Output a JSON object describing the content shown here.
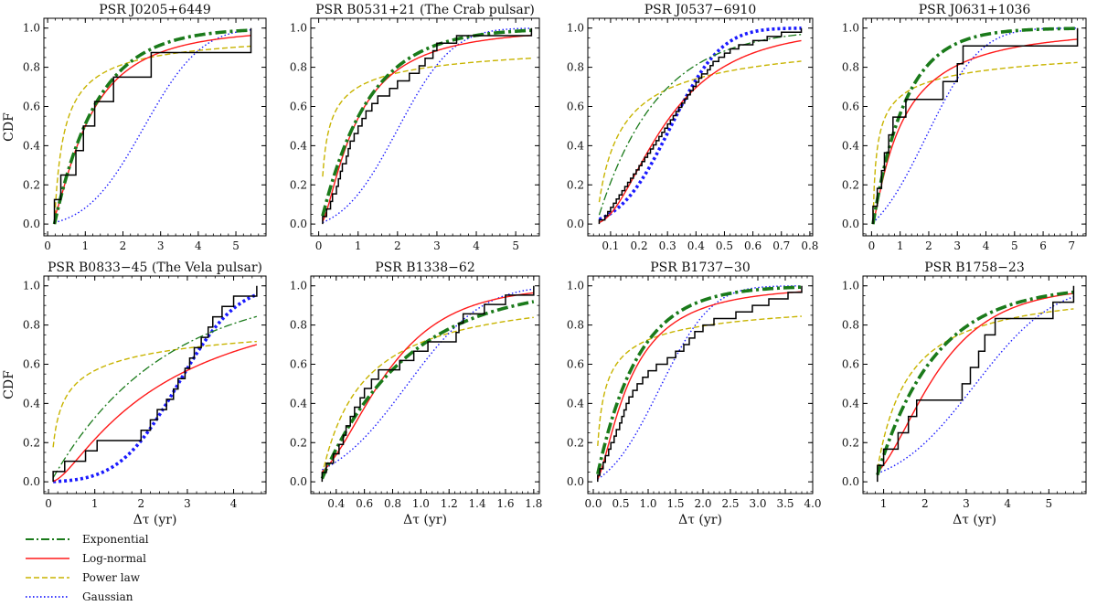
{
  "figure": {
    "ylabel": "CDF",
    "xlabel": "Δτ (yr)",
    "colors": {
      "empirical": "#000000",
      "exponential": "#1a7a1a",
      "lognormal": "#ff1a1a",
      "powerlaw": "#c8b400",
      "gaussian": "#1a1aff"
    },
    "legend": {
      "position": "below-left",
      "items": [
        {
          "key": "exponential",
          "label": "Exponential"
        },
        {
          "key": "lognormal",
          "label": "Log-normal"
        },
        {
          "key": "powerlaw",
          "label": "Power law"
        },
        {
          "key": "gaussian",
          "label": "Gaussian"
        }
      ]
    }
  },
  "chart_data": [
    {
      "type": "line",
      "title": "PSR J0205+6449",
      "xlabel": "Δτ (yr)",
      "ylabel": "CDF",
      "xlim": [
        -0.1,
        5.8
      ],
      "ylim": [
        -0.06,
        1.05
      ],
      "xticks": [
        0,
        1,
        2,
        3,
        4,
        5
      ],
      "xtick_labels": [
        "0",
        "1",
        "2",
        "3",
        "4",
        "5"
      ],
      "yticks": [
        0.0,
        0.2,
        0.4,
        0.6,
        0.8,
        1.0
      ],
      "ytick_labels": [
        "0.0",
        "0.2",
        "0.4",
        "0.6",
        "0.8",
        "1.0"
      ],
      "empirical_steps": [
        0.18,
        0.35,
        0.75,
        0.95,
        1.25,
        1.75,
        2.75,
        5.4
      ],
      "curves": {
        "exponential": {
          "kind": "exp",
          "x0": 0.18,
          "scale": 1.15
        },
        "lognormal": {
          "kind": "lognorm",
          "mu": 0.0,
          "sigma": 0.95
        },
        "powerlaw": {
          "kind": "power",
          "xmin": 0.18,
          "alpha": 0.7
        },
        "gaussian": {
          "kind": "gauss",
          "mu": 2.55,
          "sigma": 1.2
        }
      },
      "bold": "exponential"
    },
    {
      "type": "line",
      "title": "PSR B0531+21 (The Crab pulsar)",
      "xlabel": "Δτ (yr)",
      "ylabel": "CDF",
      "xlim": [
        -0.2,
        5.6
      ],
      "ylim": [
        -0.06,
        1.05
      ],
      "xticks": [
        0,
        1,
        2,
        3,
        4,
        5
      ],
      "xtick_labels": [
        "0",
        "1",
        "2",
        "3",
        "4",
        "5"
      ],
      "yticks": [
        0.0,
        0.2,
        0.4,
        0.6,
        0.8,
        1.0
      ],
      "ytick_labels": [
        "0.0",
        "0.2",
        "0.4",
        "0.6",
        "0.8",
        "1.0"
      ],
      "empirical_steps": [
        0.1,
        0.2,
        0.3,
        0.35,
        0.45,
        0.5,
        0.55,
        0.6,
        0.7,
        0.75,
        0.8,
        0.9,
        1.0,
        1.1,
        1.2,
        1.35,
        1.5,
        1.8,
        2.0,
        2.3,
        2.55,
        2.7,
        2.9,
        3.0,
        3.5,
        5.4
      ],
      "curves": {
        "exponential": {
          "kind": "exp",
          "x0": 0.05,
          "scale": 1.2
        },
        "lognormal": {
          "kind": "lognorm",
          "mu": -0.1,
          "sigma": 1.0
        },
        "powerlaw": {
          "kind": "power",
          "xmin": 0.05,
          "alpha": 0.4
        },
        "gaussian": {
          "kind": "gauss",
          "mu": 2.0,
          "sigma": 1.1
        }
      },
      "bold": "exponential"
    },
    {
      "type": "line",
      "title": "PSR J0537−6910",
      "xlabel": "Δτ (yr)",
      "ylabel": "CDF",
      "xlim": [
        0.02,
        0.81
      ],
      "ylim": [
        -0.06,
        1.05
      ],
      "xticks": [
        0.1,
        0.2,
        0.3,
        0.4,
        0.5,
        0.6,
        0.7,
        0.8
      ],
      "xtick_labels": [
        "0.1",
        "0.2",
        "0.3",
        "0.4",
        "0.5",
        "0.6",
        "0.7",
        "0.8"
      ],
      "yticks": [
        0.0,
        0.2,
        0.4,
        0.6,
        0.8,
        1.0
      ],
      "ytick_labels": [
        "0.0",
        "0.2",
        "0.4",
        "0.6",
        "0.8",
        "1.0"
      ],
      "empirical_steps": [
        0.06,
        0.08,
        0.09,
        0.1,
        0.11,
        0.12,
        0.13,
        0.14,
        0.15,
        0.16,
        0.17,
        0.18,
        0.19,
        0.2,
        0.21,
        0.22,
        0.23,
        0.24,
        0.25,
        0.26,
        0.27,
        0.28,
        0.29,
        0.3,
        0.31,
        0.32,
        0.33,
        0.34,
        0.35,
        0.36,
        0.37,
        0.38,
        0.39,
        0.4,
        0.41,
        0.42,
        0.44,
        0.45,
        0.46,
        0.48,
        0.5,
        0.52,
        0.55,
        0.6,
        0.65,
        0.7,
        0.77
      ],
      "curves": {
        "exponential": {
          "kind": "exp",
          "x0": 0.05,
          "scale": 0.21
        },
        "lognormal": {
          "kind": "lognorm",
          "mu": -1.25,
          "sigma": 0.65
        },
        "powerlaw": {
          "kind": "power",
          "xmin": 0.05,
          "alpha": 0.65
        },
        "gaussian": {
          "kind": "gauss",
          "mu": 0.31,
          "sigma": 0.14
        }
      },
      "bold": "gaussian"
    },
    {
      "type": "line",
      "title": "PSR J0631+1036",
      "xlabel": "Δτ (yr)",
      "ylabel": "CDF",
      "xlim": [
        -0.3,
        7.5
      ],
      "ylim": [
        -0.06,
        1.05
      ],
      "xticks": [
        0,
        1,
        2,
        3,
        4,
        5,
        6,
        7
      ],
      "xtick_labels": [
        "0",
        "1",
        "2",
        "3",
        "4",
        "5",
        "6",
        "7"
      ],
      "yticks": [
        0.0,
        0.2,
        0.4,
        0.6,
        0.8,
        1.0
      ],
      "ytick_labels": [
        "0.0",
        "0.2",
        "0.4",
        "0.6",
        "0.8",
        "1.0"
      ],
      "empirical_steps": [
        0.05,
        0.2,
        0.35,
        0.45,
        0.6,
        0.75,
        1.2,
        2.5,
        3.0,
        3.2,
        7.2
      ],
      "curves": {
        "exponential": {
          "kind": "exp",
          "x0": 0.05,
          "scale": 1.15
        },
        "lognormal": {
          "kind": "lognorm",
          "mu": 0.0,
          "sigma": 1.25
        },
        "powerlaw": {
          "kind": "power",
          "xmin": 0.05,
          "alpha": 0.35
        },
        "gaussian": {
          "kind": "gauss",
          "mu": 1.9,
          "sigma": 1.5
        }
      },
      "bold": "exponential"
    },
    {
      "type": "line",
      "title": "PSR B0833−45 (The Vela pulsar)",
      "xlabel": "Δτ (yr)",
      "ylabel": "CDF",
      "xlim": [
        -0.1,
        4.7
      ],
      "ylim": [
        -0.06,
        1.05
      ],
      "xticks": [
        0,
        1,
        2,
        3,
        4
      ],
      "xtick_labels": [
        "0",
        "1",
        "2",
        "3",
        "4"
      ],
      "yticks": [
        0.0,
        0.2,
        0.4,
        0.6,
        0.8,
        1.0
      ],
      "ytick_labels": [
        "0.0",
        "0.2",
        "0.4",
        "0.6",
        "0.8",
        "1.0"
      ],
      "empirical_steps": [
        0.1,
        0.35,
        0.8,
        1.05,
        2.0,
        2.2,
        2.35,
        2.55,
        2.7,
        2.8,
        2.95,
        3.05,
        3.15,
        3.3,
        3.45,
        3.55,
        3.75,
        4.0,
        4.5
      ],
      "curves": {
        "exponential": {
          "kind": "exp",
          "x0": 0.05,
          "scale": 2.4
        },
        "lognormal": {
          "kind": "lognorm",
          "mu": 0.9,
          "sigma": 1.15
        },
        "powerlaw": {
          "kind": "power",
          "xmin": 0.05,
          "alpha": 0.28
        },
        "gaussian": {
          "kind": "gauss",
          "mu": 2.8,
          "sigma": 1.0
        }
      },
      "bold": "gaussian"
    },
    {
      "type": "line",
      "title": "PSR B1338−62",
      "xlabel": "Δτ (yr)",
      "ylabel": "CDF",
      "xlim": [
        0.22,
        1.84
      ],
      "ylim": [
        -0.06,
        1.05
      ],
      "xticks": [
        0.4,
        0.6,
        0.8,
        1.0,
        1.2,
        1.4,
        1.6,
        1.8
      ],
      "xtick_labels": [
        "0.4",
        "0.6",
        "0.8",
        "1.0",
        "1.2",
        "1.4",
        "1.6",
        "1.8"
      ],
      "yticks": [
        0.0,
        0.2,
        0.4,
        0.6,
        0.8,
        1.0
      ],
      "ytick_labels": [
        "0.0",
        "0.2",
        "0.4",
        "0.6",
        "0.8",
        "1.0"
      ],
      "empirical_steps": [
        0.3,
        0.33,
        0.38,
        0.42,
        0.45,
        0.47,
        0.5,
        0.53,
        0.57,
        0.6,
        0.65,
        0.7,
        0.85,
        0.95,
        1.05,
        1.25,
        1.27,
        1.3,
        1.45,
        1.6,
        1.8
      ],
      "curves": {
        "exponential": {
          "kind": "exp",
          "x0": 0.29,
          "scale": 0.6
        },
        "lognormal": {
          "kind": "lognorm",
          "mu": -0.35,
          "sigma": 0.52
        },
        "powerlaw": {
          "kind": "power",
          "xmin": 0.29,
          "alpha": 1.0
        },
        "gaussian": {
          "kind": "gauss",
          "mu": 0.9,
          "sigma": 0.42
        }
      },
      "bold": "exponential"
    },
    {
      "type": "line",
      "title": "PSR B1737−30",
      "xlabel": "Δτ (yr)",
      "ylabel": "CDF",
      "xlim": [
        -0.1,
        4.0
      ],
      "ylim": [
        -0.06,
        1.05
      ],
      "xticks": [
        0.0,
        0.5,
        1.0,
        1.5,
        2.0,
        2.5,
        3.0,
        3.5,
        4.0
      ],
      "xtick_labels": [
        "0.0",
        "0.5",
        "1.0",
        "1.5",
        "2.0",
        "2.5",
        "3.0",
        "3.5",
        "4.0"
      ],
      "yticks": [
        0.0,
        0.2,
        0.4,
        0.6,
        0.8,
        1.0
      ],
      "ytick_labels": [
        "0.0",
        "0.2",
        "0.4",
        "0.6",
        "0.8",
        "1.0"
      ],
      "empirical_steps": [
        0.08,
        0.12,
        0.18,
        0.22,
        0.28,
        0.32,
        0.38,
        0.42,
        0.48,
        0.52,
        0.56,
        0.6,
        0.65,
        0.72,
        0.8,
        0.9,
        1.0,
        1.15,
        1.35,
        1.5,
        1.65,
        1.75,
        1.85,
        2.0,
        2.2,
        2.6,
        2.9,
        3.2,
        3.55,
        3.8
      ],
      "curves": {
        "exponential": {
          "kind": "exp",
          "x0": 0.05,
          "scale": 0.75
        },
        "lognormal": {
          "kind": "lognorm",
          "mu": -0.45,
          "sigma": 0.95
        },
        "powerlaw": {
          "kind": "power",
          "xmin": 0.05,
          "alpha": 0.43
        },
        "gaussian": {
          "kind": "gauss",
          "mu": 1.2,
          "sigma": 0.75
        }
      },
      "bold": "exponential"
    },
    {
      "type": "line",
      "title": "PSR B1758−23",
      "xlabel": "Δτ (yr)",
      "ylabel": "CDF",
      "xlim": [
        0.5,
        5.9
      ],
      "ylim": [
        -0.06,
        1.05
      ],
      "xticks": [
        1,
        2,
        3,
        4,
        5
      ],
      "xtick_labels": [
        "1",
        "2",
        "3",
        "4",
        "5"
      ],
      "yticks": [
        0.0,
        0.2,
        0.4,
        0.6,
        0.8,
        1.0
      ],
      "ytick_labels": [
        "0.0",
        "0.2",
        "0.4",
        "0.6",
        "0.8",
        "1.0"
      ],
      "empirical_steps": [
        0.85,
        1.0,
        1.35,
        1.6,
        1.8,
        2.9,
        3.1,
        3.3,
        3.45,
        3.7,
        5.1,
        5.6
      ],
      "curves": {
        "exponential": {
          "kind": "exp",
          "x0": 0.8,
          "scale": 1.4
        },
        "lognormal": {
          "kind": "lognorm",
          "mu": 0.75,
          "sigma": 0.55
        },
        "powerlaw": {
          "kind": "power",
          "xmin": 0.8,
          "alpha": 1.1
        },
        "gaussian": {
          "kind": "gauss",
          "mu": 3.2,
          "sigma": 1.5
        }
      },
      "bold": "exponential"
    }
  ]
}
